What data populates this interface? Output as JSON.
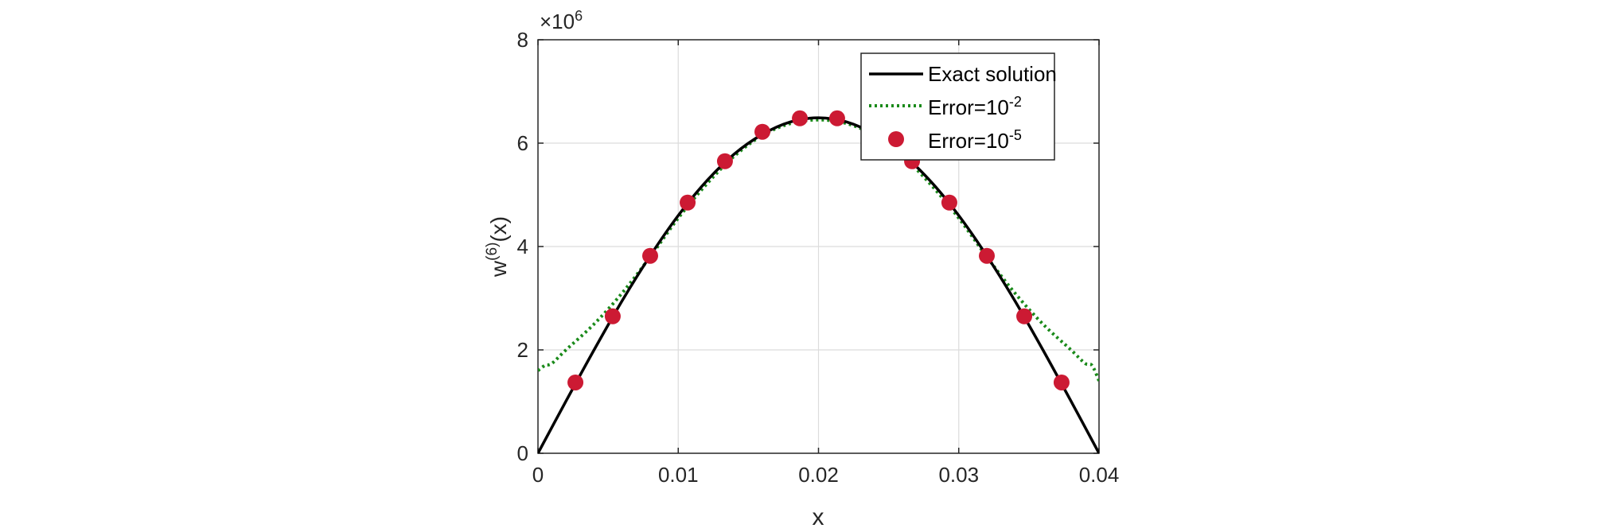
{
  "chart_data": {
    "type": "line",
    "xlabel": "x",
    "ylabel": {
      "base": "w",
      "sup": "(6)",
      "rest": "(x)"
    },
    "y_multiplier": {
      "prefix": "×10",
      "exp": "6"
    },
    "xlim": [
      0,
      0.04
    ],
    "ylim": [
      0,
      8000000
    ],
    "x_ticks": [
      0,
      0.01,
      0.02,
      0.03,
      0.04
    ],
    "x_tick_labels": [
      "0",
      "0.01",
      "0.02",
      "0.03",
      "0.04"
    ],
    "y_ticks": [
      0,
      2000000,
      4000000,
      6000000,
      8000000
    ],
    "y_tick_labels": [
      "0",
      "2",
      "4",
      "6",
      "8"
    ],
    "grid": true,
    "legend_position": "top-right",
    "legend": [
      {
        "base": "Exact solution",
        "sup": ""
      },
      {
        "base": "Error=10",
        "sup": "-2"
      },
      {
        "base": "Error=10",
        "sup": "-5"
      }
    ],
    "series": [
      {
        "style": "solid",
        "color": "#000000",
        "x": [
          0,
          0.002,
          0.004,
          0.006,
          0.008,
          0.01,
          0.012,
          0.014,
          0.016,
          0.018,
          0.02,
          0.022,
          0.024,
          0.026,
          0.028,
          0.03,
          0.032,
          0.034,
          0.036,
          0.038,
          0.04
        ],
        "y": [
          0,
          1010000,
          2000000,
          2950000,
          3820000,
          4600000,
          5260000,
          5790000,
          6170000,
          6410000,
          6490000,
          6410000,
          6170000,
          5790000,
          5260000,
          4600000,
          3820000,
          2950000,
          2000000,
          1010000,
          0
        ]
      },
      {
        "style": "dotted",
        "color": "#1a8a1a",
        "x": [
          0,
          0.0005,
          0.001,
          0.002,
          0.004,
          0.006,
          0.008,
          0.01,
          0.012,
          0.014,
          0.016,
          0.018,
          0.02,
          0.022,
          0.024,
          0.026,
          0.028,
          0.03,
          0.032,
          0.034,
          0.036,
          0.038,
          0.039,
          0.0395,
          0.04
        ],
        "y": [
          1600000,
          1700000,
          1740000,
          2000000,
          2500000,
          3100000,
          3800000,
          4550000,
          5200000,
          5750000,
          6150000,
          6380000,
          6450000,
          6380000,
          6150000,
          5750000,
          5200000,
          4550000,
          3800000,
          3100000,
          2500000,
          2000000,
          1740000,
          1700000,
          1400000
        ]
      },
      {
        "style": "markers",
        "color": "#cc1a33",
        "x": [
          0.00267,
          0.00533,
          0.008,
          0.01067,
          0.01333,
          0.016,
          0.01867,
          0.02133,
          0.02667,
          0.02933,
          0.032,
          0.03467,
          0.03733
        ],
        "y": [
          1370000,
          2650000,
          3820000,
          4850000,
          5650000,
          6220000,
          6480000,
          6480000,
          5650000,
          4850000,
          3820000,
          2650000,
          1370000
        ]
      }
    ]
  }
}
